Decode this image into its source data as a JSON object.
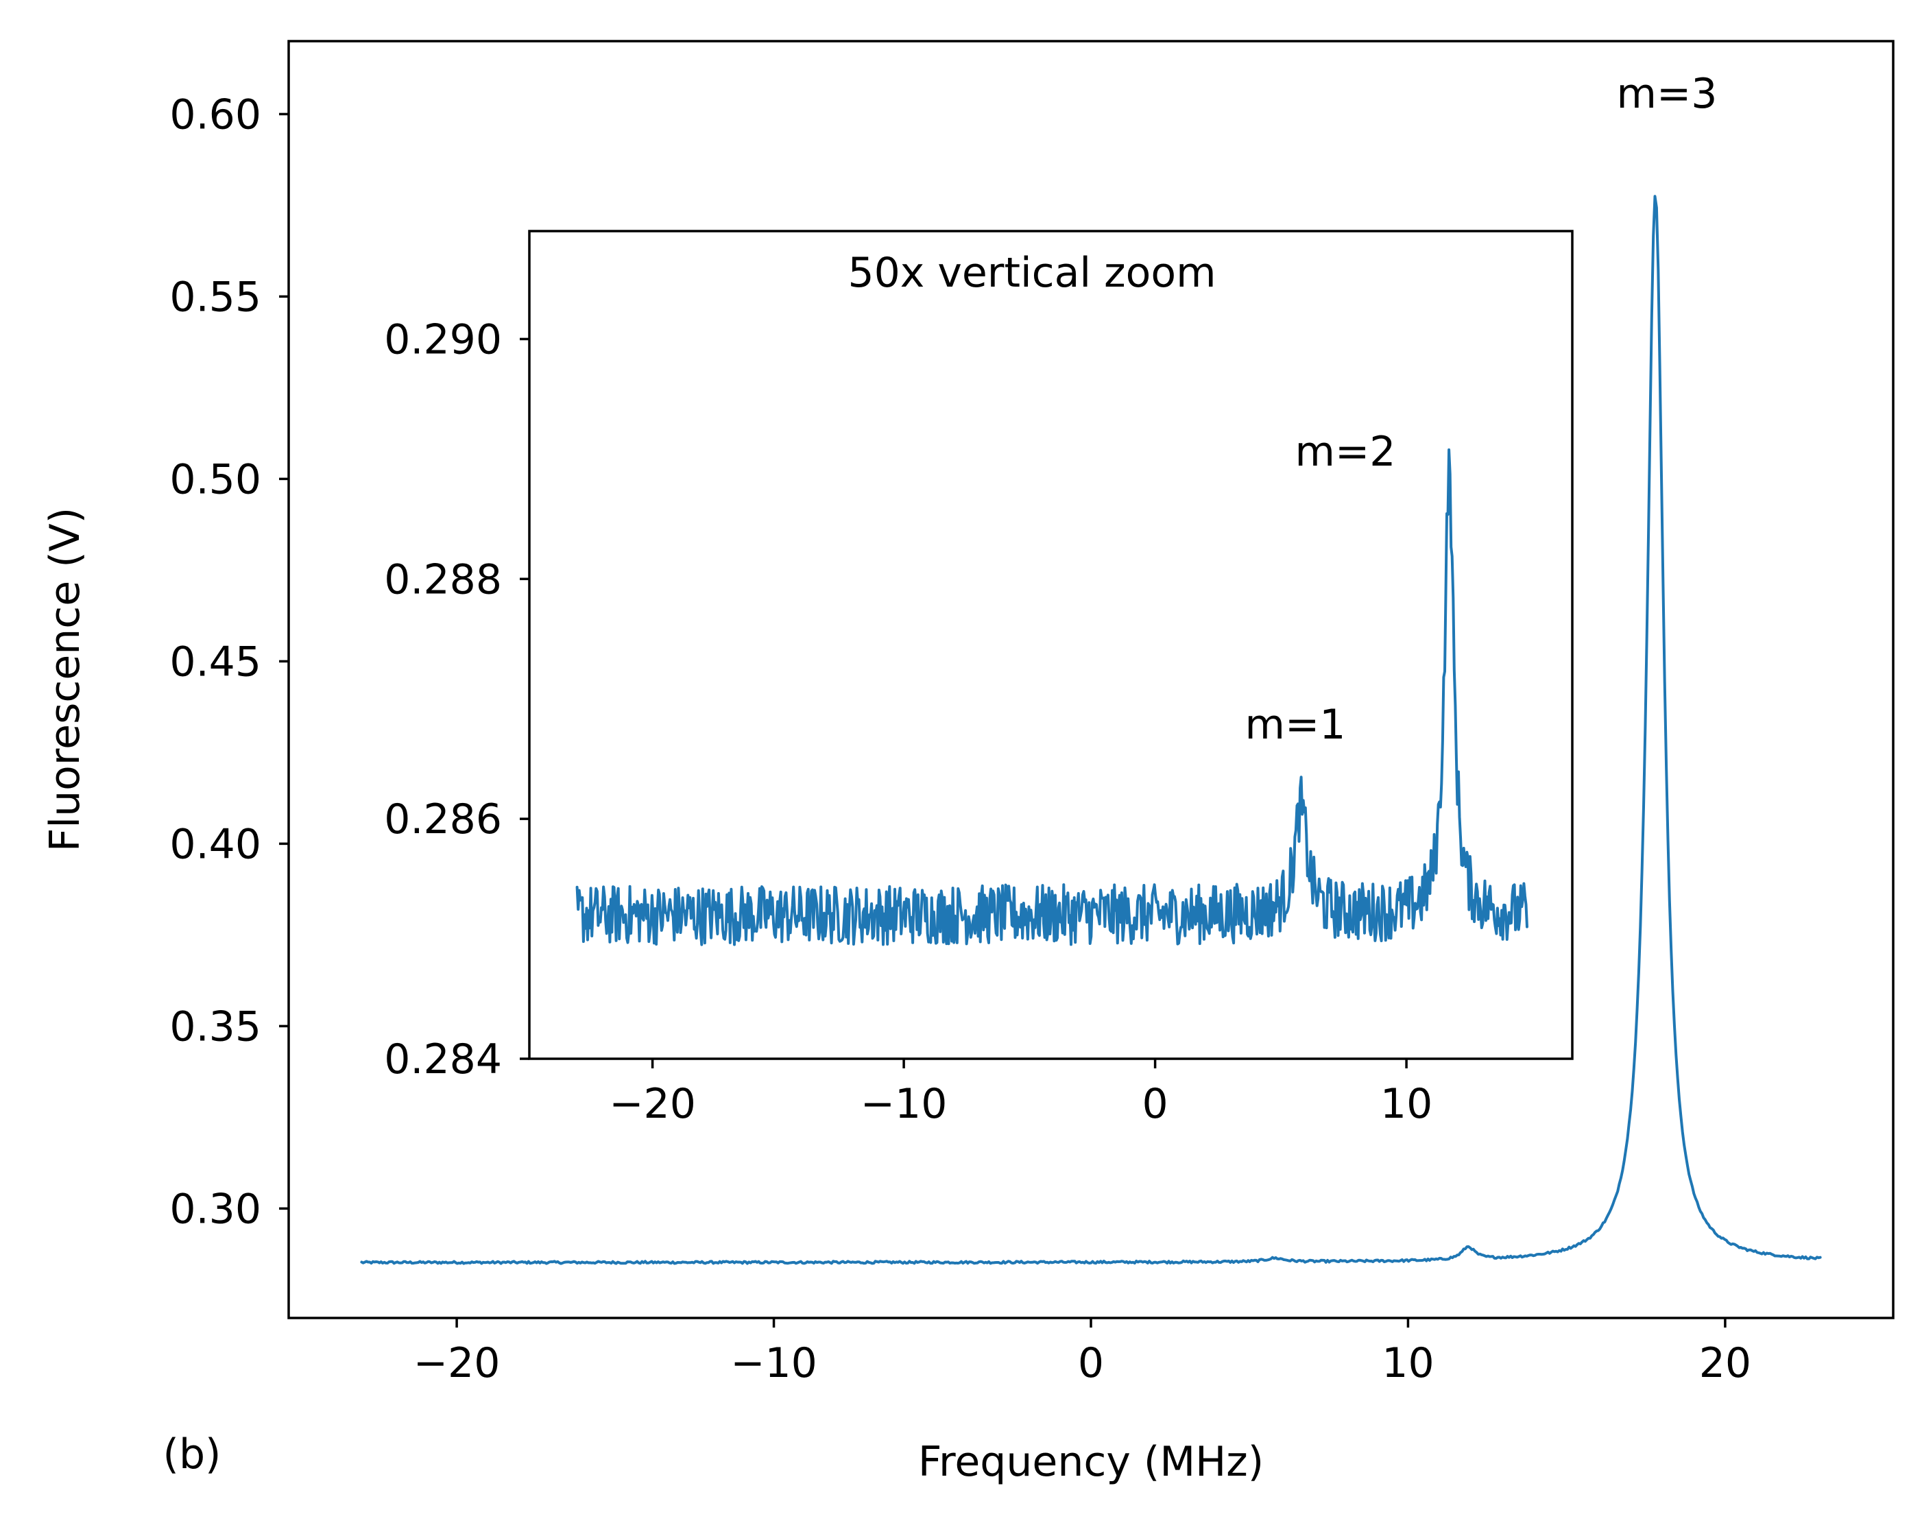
{
  "panel_label": "(b)",
  "colors": {
    "series": "#1f77b4",
    "axes": "#000000",
    "background": "#ffffff"
  },
  "chart_data": [
    {
      "id": "main",
      "type": "line",
      "title": "",
      "xlabel": "Frequency (MHz)",
      "ylabel": "Fluorescence (V)",
      "xlim": [
        -25.3,
        25.3
      ],
      "ylim": [
        0.27,
        0.62
      ],
      "xticks": [
        -20,
        -10,
        0,
        10,
        20
      ],
      "xtick_labels": [
        "−20",
        "−10",
        "0",
        "10",
        "20"
      ],
      "yticks": [
        0.3,
        0.35,
        0.4,
        0.45,
        0.5,
        0.55,
        0.6
      ],
      "ytick_labels": [
        "0.30",
        "0.35",
        "0.40",
        "0.45",
        "0.50",
        "0.55",
        "0.60"
      ],
      "grid": false,
      "series": [
        {
          "name": "fluorescence",
          "x_range": [
            -23.0,
            23.0
          ],
          "baseline": 0.2852,
          "peaks": [
            {
              "center": 5.8,
              "amplitude": 0.001,
              "width": 0.35
            },
            {
              "center": 11.9,
              "amplitude": 0.0035,
              "width": 0.25
            },
            {
              "center": 17.8,
              "amplitude": 0.293,
              "width": 0.32
            }
          ]
        }
      ],
      "annotations": [
        {
          "text": "m=3",
          "x": 18.5,
          "y": 0.601
        }
      ]
    },
    {
      "id": "inset",
      "type": "line",
      "title": "50x vertical zoom",
      "xlabel": "",
      "ylabel": "",
      "xlim": [
        -24.9,
        16.6
      ],
      "ylim": [
        0.284,
        0.2909
      ],
      "xticks": [
        -20,
        -10,
        0,
        10
      ],
      "xtick_labels": [
        "−20",
        "−10",
        "0",
        "10"
      ],
      "yticks": [
        0.284,
        0.286,
        0.288,
        0.29
      ],
      "ytick_labels": [
        "0.284",
        "0.286",
        "0.288",
        "0.290"
      ],
      "grid": false,
      "series": [
        {
          "name": "fluorescence (zoom)",
          "x_range": [
            -23.0,
            14.8
          ],
          "baseline": 0.2852,
          "noise": 0.00025,
          "peaks": [
            {
              "center": 5.8,
              "amplitude": 0.0009,
              "width": 0.3
            },
            {
              "center": 11.7,
              "amplitude": 0.0037,
              "width": 0.22
            }
          ]
        }
      ],
      "annotations": [
        {
          "text": "m=1",
          "x": 5.7,
          "y": 0.2867
        },
        {
          "text": "m=2",
          "x": 8.2,
          "y": 0.289
        }
      ]
    }
  ]
}
